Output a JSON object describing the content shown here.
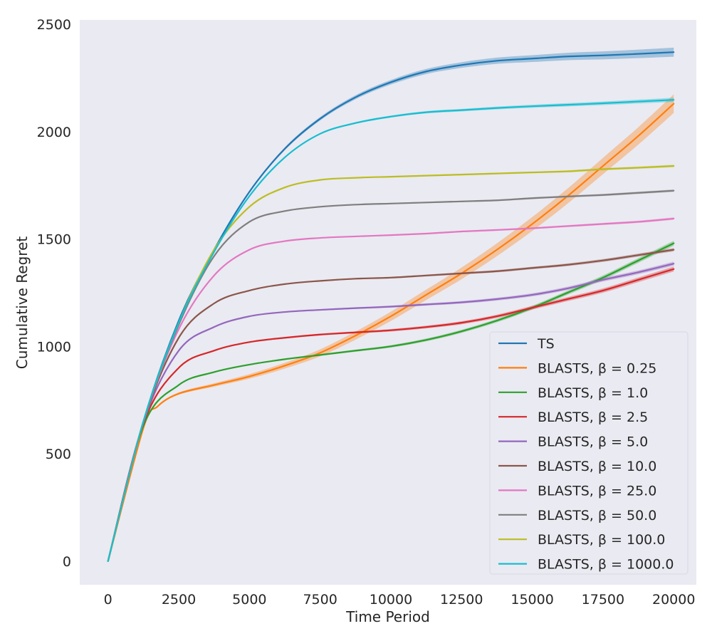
{
  "chart_data": {
    "type": "line",
    "title": "",
    "xlabel": "Time Period",
    "ylabel": "Cumulative Regret",
    "xlim": [
      -1000,
      20800
    ],
    "ylim": [
      -110,
      2520
    ],
    "xticks": [
      0,
      2500,
      5000,
      7500,
      10000,
      12500,
      15000,
      17500,
      20000
    ],
    "yticks": [
      0,
      500,
      1000,
      1500,
      2000,
      2500
    ],
    "grid": false,
    "legend_position": "lower-right",
    "background": "#eaeaf2",
    "series": [
      {
        "name": "TS",
        "color": "#1f77b4",
        "band": 22,
        "x": [
          0,
          1250,
          2500,
          3750,
          5000,
          6250,
          7500,
          8750,
          10000,
          11250,
          12500,
          13750,
          15000,
          16250,
          17500,
          18750,
          20000
        ],
        "y": [
          0,
          650,
          1120,
          1450,
          1720,
          1920,
          2060,
          2160,
          2230,
          2280,
          2310,
          2330,
          2340,
          2350,
          2355,
          2362,
          2370
        ]
      },
      {
        "name": "BLASTS, β = 0.25",
        "color": "#ff7f0e",
        "band": 45,
        "x": [
          0,
          1250,
          1750,
          2500,
          3750,
          5000,
          6250,
          7500,
          8750,
          10000,
          11250,
          12500,
          13750,
          15000,
          16250,
          17500,
          18750,
          20000
        ],
        "y": [
          0,
          620,
          720,
          780,
          820,
          860,
          910,
          970,
          1050,
          1140,
          1240,
          1340,
          1450,
          1570,
          1700,
          1840,
          1980,
          2130
        ]
      },
      {
        "name": "BLASTS, β = 1.0",
        "color": "#2ca02c",
        "band": 12,
        "x": [
          0,
          1250,
          2500,
          3750,
          5000,
          6250,
          7500,
          8750,
          10000,
          11250,
          12500,
          13750,
          15000,
          16250,
          17500,
          18750,
          20000
        ],
        "y": [
          0,
          630,
          820,
          880,
          915,
          940,
          960,
          980,
          1000,
          1030,
          1070,
          1120,
          1180,
          1250,
          1320,
          1400,
          1480
        ]
      },
      {
        "name": "BLASTS, β = 2.5",
        "color": "#d62728",
        "band": 12,
        "x": [
          0,
          1250,
          2500,
          3750,
          5000,
          6250,
          7500,
          8750,
          10000,
          11250,
          12500,
          13750,
          15000,
          16250,
          17500,
          18750,
          20000
        ],
        "y": [
          0,
          640,
          900,
          980,
          1020,
          1040,
          1055,
          1065,
          1075,
          1090,
          1110,
          1140,
          1180,
          1220,
          1260,
          1310,
          1360
        ]
      },
      {
        "name": "BLASTS, β = 5.0",
        "color": "#9467bd",
        "band": 10,
        "x": [
          0,
          1250,
          2500,
          3750,
          5000,
          6250,
          7500,
          8750,
          10000,
          11250,
          12500,
          13750,
          15000,
          16250,
          17500,
          18750,
          20000
        ],
        "y": [
          0,
          645,
          980,
          1090,
          1140,
          1160,
          1170,
          1178,
          1185,
          1195,
          1205,
          1220,
          1240,
          1270,
          1310,
          1345,
          1385
        ]
      },
      {
        "name": "BLASTS, β = 10.0",
        "color": "#8c564b",
        "band": 8,
        "x": [
          0,
          1250,
          2500,
          3750,
          5000,
          6250,
          7500,
          8750,
          10000,
          11250,
          12500,
          13750,
          15000,
          16250,
          17500,
          18750,
          20000
        ],
        "y": [
          0,
          648,
          1040,
          1200,
          1260,
          1290,
          1305,
          1315,
          1320,
          1330,
          1340,
          1350,
          1365,
          1380,
          1400,
          1425,
          1450
        ]
      },
      {
        "name": "BLASTS, β = 25.0",
        "color": "#e377c2",
        "band": 6,
        "x": [
          0,
          1250,
          2500,
          3750,
          5000,
          6250,
          7500,
          8750,
          10000,
          11250,
          12500,
          13750,
          15000,
          16250,
          17500,
          18750,
          20000
        ],
        "y": [
          0,
          650,
          1080,
          1330,
          1450,
          1490,
          1505,
          1512,
          1518,
          1525,
          1535,
          1542,
          1550,
          1560,
          1570,
          1580,
          1595
        ]
      },
      {
        "name": "BLASTS, β = 50.0",
        "color": "#7f7f7f",
        "band": 6,
        "x": [
          0,
          1250,
          2500,
          3750,
          5000,
          6250,
          7500,
          8750,
          10000,
          11250,
          12500,
          13750,
          15000,
          16250,
          17500,
          18750,
          20000
        ],
        "y": [
          0,
          650,
          1100,
          1420,
          1580,
          1630,
          1650,
          1660,
          1665,
          1670,
          1675,
          1680,
          1690,
          1698,
          1705,
          1715,
          1725
        ]
      },
      {
        "name": "BLASTS, β = 100.0",
        "color": "#bcbd22",
        "band": 6,
        "x": [
          0,
          1250,
          2500,
          3750,
          5000,
          6250,
          7500,
          8750,
          10000,
          11250,
          12500,
          13750,
          15000,
          16250,
          17500,
          18750,
          20000
        ],
        "y": [
          0,
          650,
          1110,
          1450,
          1650,
          1740,
          1775,
          1785,
          1790,
          1795,
          1800,
          1805,
          1810,
          1815,
          1825,
          1832,
          1840
        ]
      },
      {
        "name": "BLASTS, β = 1000.0",
        "color": "#17becf",
        "band": 10,
        "x": [
          0,
          1250,
          2500,
          3750,
          5000,
          6250,
          7500,
          8750,
          10000,
          11250,
          12500,
          13750,
          15000,
          16250,
          17500,
          18750,
          20000
        ],
        "y": [
          0,
          650,
          1110,
          1440,
          1700,
          1880,
          1990,
          2040,
          2070,
          2090,
          2100,
          2110,
          2118,
          2125,
          2132,
          2140,
          2148
        ]
      }
    ]
  }
}
